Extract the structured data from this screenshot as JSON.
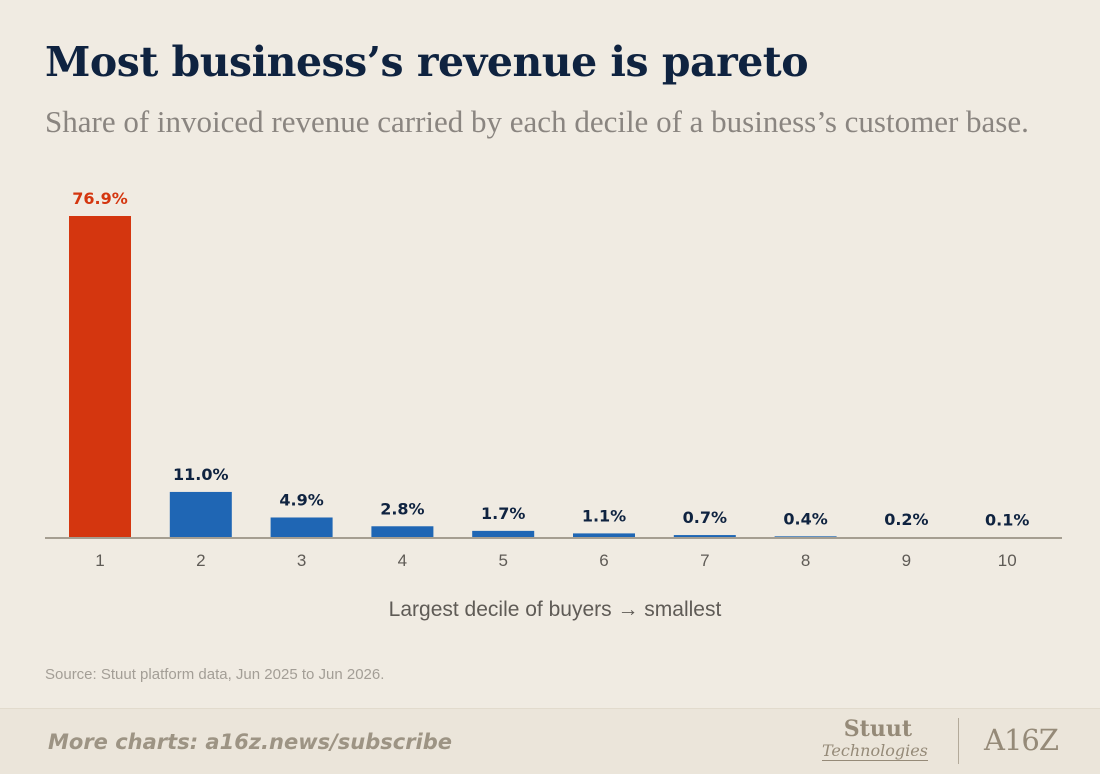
{
  "header": {
    "title": "Most business’s revenue is pareto",
    "subtitle": "Share of invoiced revenue carried by each decile of a business’s customer base."
  },
  "chart_data": {
    "type": "bar",
    "title": "Most business’s revenue is pareto",
    "subtitle": "Share of invoiced revenue carried by each decile of a business’s customer base.",
    "xlabel": "Largest decile of buyers → smallest",
    "ylabel": "",
    "categories": [
      "1",
      "2",
      "3",
      "4",
      "5",
      "6",
      "7",
      "8",
      "9",
      "10"
    ],
    "values": [
      76.9,
      11.0,
      4.9,
      2.8,
      1.7,
      1.1,
      0.7,
      0.4,
      0.2,
      0.1
    ],
    "value_labels": [
      "76.9%",
      "11.0%",
      "4.9%",
      "2.8%",
      "1.7%",
      "1.1%",
      "0.7%",
      "0.4%",
      "0.2%",
      "0.1%"
    ],
    "ylim": [
      0,
      76.9
    ],
    "highlight_index": 0,
    "colors": {
      "highlight": "#d4360f",
      "bar": "#1f66b4",
      "highlight_label": "#d4360f",
      "label": "#0f2340",
      "axis": "#a59e91",
      "tick": "#5f5b56"
    },
    "grid": false,
    "legend": "none"
  },
  "source": "Source: Stuut platform data, Jun 2025 to Jun 2026.",
  "footer": {
    "link": "More charts: a16z.news/subscribe",
    "logo_stuut_line1": "Stuut",
    "logo_stuut_line2": "Technologies",
    "logo_a16z": "A16Z"
  }
}
